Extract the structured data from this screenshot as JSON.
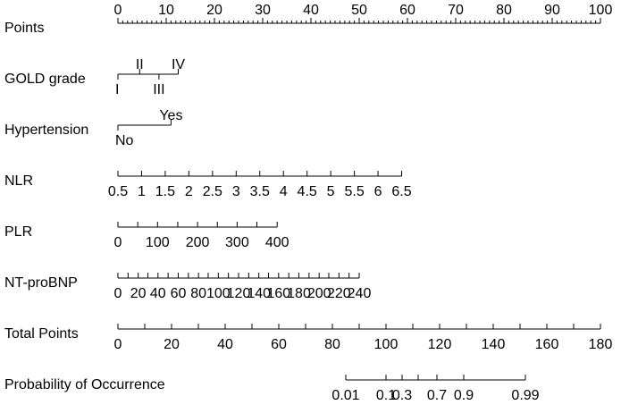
{
  "chart_data": {
    "type": "nomogram",
    "title": "",
    "rows": [
      {
        "label": "Points",
        "labels_above": true,
        "ticks": [
          {
            "value": 0,
            "label": "0"
          },
          {
            "value": 10,
            "label": "10"
          },
          {
            "value": 20,
            "label": "20"
          },
          {
            "value": 30,
            "label": "30"
          },
          {
            "value": 40,
            "label": "40"
          },
          {
            "value": 50,
            "label": "50"
          },
          {
            "value": 60,
            "label": "60"
          },
          {
            "value": 70,
            "label": "70"
          },
          {
            "value": 80,
            "label": "80"
          },
          {
            "value": 90,
            "label": "90"
          },
          {
            "value": 100,
            "label": "100"
          }
        ],
        "minor_ticks": [
          1,
          2,
          3,
          4,
          5,
          6,
          7,
          8,
          9,
          11,
          12,
          13,
          14,
          15,
          16,
          17,
          18,
          19,
          21,
          22,
          23,
          24,
          25,
          26,
          27,
          28,
          29,
          31,
          32,
          33,
          34,
          35,
          36,
          37,
          38,
          39,
          41,
          42,
          43,
          44,
          45,
          46,
          47,
          48,
          49,
          51,
          52,
          53,
          54,
          55,
          56,
          57,
          58,
          59,
          61,
          62,
          63,
          64,
          65,
          66,
          67,
          68,
          69,
          71,
          72,
          73,
          74,
          75,
          76,
          77,
          78,
          79,
          81,
          82,
          83,
          84,
          85,
          86,
          87,
          88,
          89,
          91,
          92,
          93,
          94,
          95,
          96,
          97,
          98,
          99
        ]
      },
      {
        "label": "GOLD grade",
        "alternating": true,
        "ticks": [
          {
            "points": 0,
            "label": "I"
          },
          {
            "points": 4.5,
            "label": "II"
          },
          {
            "points": 8.5,
            "label": "III"
          },
          {
            "points": 12.5,
            "label": "IV"
          }
        ]
      },
      {
        "label": "Hypertension",
        "alternating": true,
        "ticks": [
          {
            "points": 0,
            "label": "No"
          },
          {
            "points": 11,
            "label": "Yes"
          }
        ]
      },
      {
        "label": "NLR",
        "ticks": [
          {
            "value": 0.5,
            "points": 0,
            "label": "0.5"
          },
          {
            "value": 1,
            "points": 4.9,
            "label": "1"
          },
          {
            "value": 1.5,
            "points": 9.8,
            "label": "1.5"
          },
          {
            "value": 2,
            "points": 14.7,
            "label": "2"
          },
          {
            "value": 2.5,
            "points": 19.6,
            "label": "2.5"
          },
          {
            "value": 3,
            "points": 24.5,
            "label": "3"
          },
          {
            "value": 3.5,
            "points": 29.4,
            "label": "3.5"
          },
          {
            "value": 4,
            "points": 34.3,
            "label": "4"
          },
          {
            "value": 4.5,
            "points": 39.2,
            "label": "4.5"
          },
          {
            "value": 5,
            "points": 44.1,
            "label": "5"
          },
          {
            "value": 5.5,
            "points": 49.0,
            "label": "5.5"
          },
          {
            "value": 6,
            "points": 53.9,
            "label": "6"
          },
          {
            "value": 6.5,
            "points": 58.8,
            "label": "6.5"
          }
        ]
      },
      {
        "label": "PLR",
        "ticks": [
          {
            "value": 0,
            "points": 0,
            "label": "0"
          },
          {
            "value": 50,
            "points": 4.1,
            "label": ""
          },
          {
            "value": 100,
            "points": 8.2,
            "label": "100"
          },
          {
            "value": 150,
            "points": 12.4,
            "label": ""
          },
          {
            "value": 200,
            "points": 16.5,
            "label": "200"
          },
          {
            "value": 250,
            "points": 20.6,
            "label": ""
          },
          {
            "value": 300,
            "points": 24.7,
            "label": "300"
          },
          {
            "value": 350,
            "points": 28.8,
            "label": ""
          },
          {
            "value": 400,
            "points": 33.0,
            "label": "400"
          }
        ]
      },
      {
        "label": "NT-proBNP",
        "ticks": [
          {
            "value": 0,
            "points": 0,
            "label": "0"
          },
          {
            "value": 10,
            "points": 2.1,
            "label": ""
          },
          {
            "value": 20,
            "points": 4.2,
            "label": "20"
          },
          {
            "value": 30,
            "points": 6.2,
            "label": ""
          },
          {
            "value": 40,
            "points": 8.3,
            "label": "40"
          },
          {
            "value": 50,
            "points": 10.4,
            "label": ""
          },
          {
            "value": 60,
            "points": 12.5,
            "label": "60"
          },
          {
            "value": 70,
            "points": 14.6,
            "label": ""
          },
          {
            "value": 80,
            "points": 16.7,
            "label": "80"
          },
          {
            "value": 90,
            "points": 18.7,
            "label": ""
          },
          {
            "value": 100,
            "points": 20.8,
            "label": "100"
          },
          {
            "value": 110,
            "points": 22.9,
            "label": ""
          },
          {
            "value": 120,
            "points": 25.0,
            "label": "120"
          },
          {
            "value": 130,
            "points": 27.1,
            "label": ""
          },
          {
            "value": 140,
            "points": 29.2,
            "label": "140"
          },
          {
            "value": 150,
            "points": 31.2,
            "label": ""
          },
          {
            "value": 160,
            "points": 33.3,
            "label": "160"
          },
          {
            "value": 170,
            "points": 35.4,
            "label": ""
          },
          {
            "value": 180,
            "points": 37.5,
            "label": "180"
          },
          {
            "value": 190,
            "points": 39.6,
            "label": ""
          },
          {
            "value": 200,
            "points": 41.7,
            "label": "200"
          },
          {
            "value": 210,
            "points": 43.7,
            "label": ""
          },
          {
            "value": 220,
            "points": 45.8,
            "label": "220"
          },
          {
            "value": 230,
            "points": 47.9,
            "label": ""
          },
          {
            "value": 240,
            "points": 50.0,
            "label": "240"
          }
        ]
      },
      {
        "label": "Total Points",
        "ticks": [
          {
            "total": 0,
            "label": "0"
          },
          {
            "total": 10,
            "label": ""
          },
          {
            "total": 20,
            "label": "20"
          },
          {
            "total": 30,
            "label": ""
          },
          {
            "total": 40,
            "label": "40"
          },
          {
            "total": 50,
            "label": ""
          },
          {
            "total": 60,
            "label": "60"
          },
          {
            "total": 70,
            "label": ""
          },
          {
            "total": 80,
            "label": "80"
          },
          {
            "total": 90,
            "label": ""
          },
          {
            "total": 100,
            "label": "100"
          },
          {
            "total": 110,
            "label": ""
          },
          {
            "total": 120,
            "label": "120"
          },
          {
            "total": 130,
            "label": ""
          },
          {
            "total": 140,
            "label": "140"
          },
          {
            "total": 150,
            "label": ""
          },
          {
            "total": 160,
            "label": "160"
          },
          {
            "total": 170,
            "label": ""
          },
          {
            "total": 180,
            "label": "180"
          }
        ]
      },
      {
        "label": "Probability of Occurrence",
        "ticks": [
          {
            "total": 85,
            "probability": 0.01,
            "label": "0.01"
          },
          {
            "total": 100,
            "probability": 0.1,
            "label": "0.1"
          },
          {
            "total": 106,
            "probability": 0.3,
            "label": "0.3"
          },
          {
            "total": 112,
            "probability": 0.5,
            "label": ""
          },
          {
            "total": 119,
            "probability": 0.7,
            "label": "0.7"
          },
          {
            "total": 129,
            "probability": 0.9,
            "label": "0.9"
          },
          {
            "total": 152,
            "probability": 0.99,
            "label": "0.99"
          }
        ]
      }
    ]
  }
}
